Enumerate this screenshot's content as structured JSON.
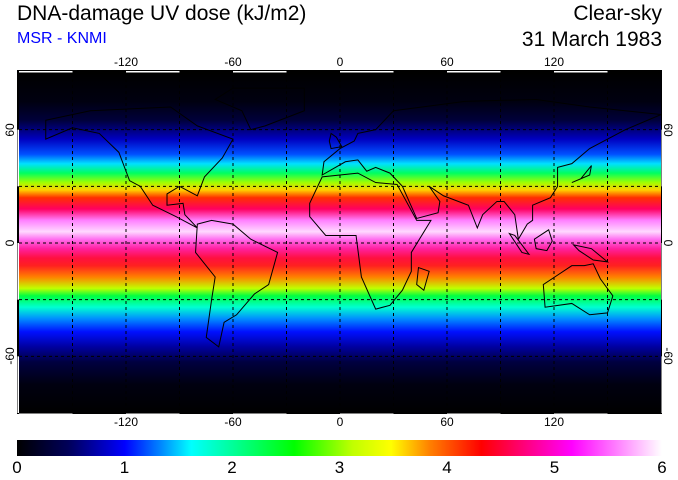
{
  "header": {
    "title": "DNA-damage UV dose (kJ/m2)",
    "source": "MSR - KNMI",
    "condition": "Clear-sky",
    "date": "31 March 1983"
  },
  "map": {
    "lon_labels": [
      "-120",
      "-60",
      "0",
      "60",
      "120"
    ],
    "lat_labels": [
      "60",
      "0",
      "-60"
    ],
    "gridline_spacing_deg": 30
  },
  "colorbar": {
    "ticks": [
      "0",
      "1",
      "2",
      "3",
      "4",
      "5",
      "6"
    ],
    "range": [
      0,
      6
    ],
    "colors": [
      "#000000",
      "#0000ff",
      "#00ffff",
      "#00ff00",
      "#ffff00",
      "#ff0000",
      "#ff00ff",
      "#ffffff"
    ]
  }
}
